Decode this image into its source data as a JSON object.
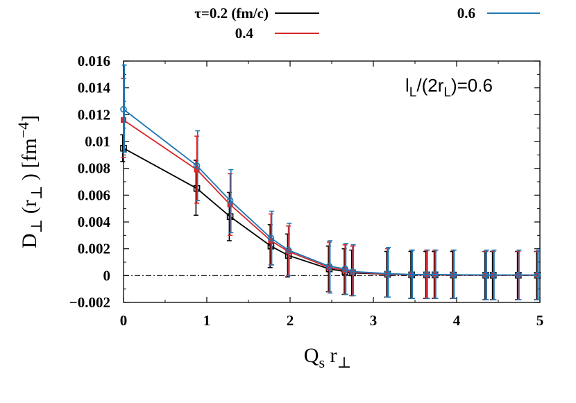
{
  "chart_data": {
    "type": "line",
    "xlabel": {
      "main": "Q",
      "sub1": "s",
      "mid": " r",
      "sub2": "⊥"
    },
    "ylabel": {
      "a": "D",
      "a_sub": "⊥",
      "b": " (r",
      "b_sub": "⊥",
      "c": " ) [fm",
      "c_sup": "−4",
      "d": "]"
    },
    "xlim": [
      0,
      5
    ],
    "ylim": [
      -0.002,
      0.016
    ],
    "xticks": [
      0,
      1,
      2,
      3,
      4,
      5
    ],
    "xtick_labels": [
      "0",
      "1",
      "2",
      "3",
      "4",
      "5"
    ],
    "yticks": [
      -0.002,
      0,
      0.002,
      0.004,
      0.006,
      0.008,
      0.01,
      0.012,
      0.014,
      0.016
    ],
    "ytick_labels": [
      "−0.002",
      "0",
      "0.002",
      "0.004",
      "0.006",
      "0.008",
      "0.01",
      "0.012",
      "0.014",
      "0.016"
    ],
    "zero_line": true,
    "annotation": {
      "a": "l",
      "a_sub": "L",
      "b": "/(2r",
      "b_sub": "L",
      "c": ")=0.6"
    },
    "legend": {
      "placement": "top-outside"
    },
    "series": [
      {
        "name": "τ=0.2 (fm/c)",
        "color": "#000000",
        "marker": "open-square",
        "x": [
          0,
          0.88,
          1.28,
          1.77,
          1.98,
          2.47,
          2.66,
          2.75,
          3.17,
          3.46,
          3.64,
          3.74,
          3.96,
          4.35,
          4.44,
          4.74,
          4.97
        ],
        "y": [
          0.0095,
          0.0065,
          0.0044,
          0.0022,
          0.0015,
          0.0005,
          0.0003,
          0.0002,
          0.0001,
          5e-05,
          5e-05,
          5e-05,
          4e-05,
          3e-05,
          3e-05,
          3e-05,
          3e-05
        ],
        "yerr_low": [
          0.0085,
          0.0045,
          0.0026,
          0.0006,
          -0.0001,
          -0.0012,
          -0.0014,
          -0.0015,
          -0.0016,
          -0.0017,
          -0.0017,
          -0.0017,
          -0.0017,
          -0.0018,
          -0.0018,
          -0.0018,
          -0.0018
        ],
        "yerr_high": [
          0.0105,
          0.0086,
          0.0062,
          0.0038,
          0.0031,
          0.0022,
          0.002,
          0.0019,
          0.0018,
          0.0018,
          0.0018,
          0.0018,
          0.0018,
          0.0018,
          0.0018,
          0.0018,
          0.0018
        ]
      },
      {
        "name": "0.4",
        "color": "#d62728",
        "marker": "filled-square",
        "x": [
          0,
          0.88,
          1.28,
          1.77,
          1.98,
          2.47,
          2.66,
          2.75,
          3.17,
          3.46,
          3.64,
          3.74,
          3.96,
          4.35,
          4.44,
          4.74,
          4.97
        ],
        "y": [
          0.0116,
          0.0079,
          0.0053,
          0.0026,
          0.0018,
          0.0006,
          0.0004,
          0.00025,
          0.0001,
          5e-05,
          5e-05,
          5e-05,
          4e-05,
          3e-05,
          3e-05,
          3e-05,
          3e-05
        ],
        "yerr_low": [
          0.0088,
          0.0054,
          0.003,
          0.0008,
          0.0,
          -0.0012,
          -0.0014,
          -0.0015,
          -0.0016,
          -0.0017,
          -0.0017,
          -0.0017,
          -0.0017,
          -0.0018,
          -0.0018,
          -0.0018,
          -0.0018
        ],
        "yerr_high": [
          0.0147,
          0.0104,
          0.0076,
          0.0046,
          0.0037,
          0.0025,
          0.0023,
          0.0022,
          0.002,
          0.0019,
          0.0019,
          0.0019,
          0.0019,
          0.0018,
          0.0018,
          0.0018,
          0.0018
        ]
      },
      {
        "name": "0.6",
        "color": "#1f77b4",
        "marker": "open-circle",
        "x": [
          0,
          0.88,
          1.28,
          1.77,
          1.98,
          2.47,
          2.66,
          2.75,
          3.17,
          3.46,
          3.64,
          3.74,
          3.96,
          4.35,
          4.44,
          4.74,
          4.97
        ],
        "y": [
          0.0124,
          0.0082,
          0.0056,
          0.0028,
          0.0019,
          0.0007,
          0.0005,
          0.0003,
          0.00015,
          8e-05,
          8e-05,
          8e-05,
          6e-05,
          5e-05,
          5e-05,
          5e-05,
          5e-05
        ],
        "yerr_low": [
          0.0092,
          0.0056,
          0.0032,
          0.0008,
          0.0,
          -0.0013,
          -0.0014,
          -0.0015,
          -0.0016,
          -0.0017,
          -0.0017,
          -0.0017,
          -0.0017,
          -0.0018,
          -0.0018,
          -0.0018,
          -0.0018
        ],
        "yerr_high": [
          0.0157,
          0.0108,
          0.0079,
          0.0048,
          0.0039,
          0.0026,
          0.0024,
          0.0023,
          0.0021,
          0.0019,
          0.0019,
          0.0019,
          0.0019,
          0.0019,
          0.0019,
          0.0019,
          0.0019
        ]
      }
    ]
  }
}
